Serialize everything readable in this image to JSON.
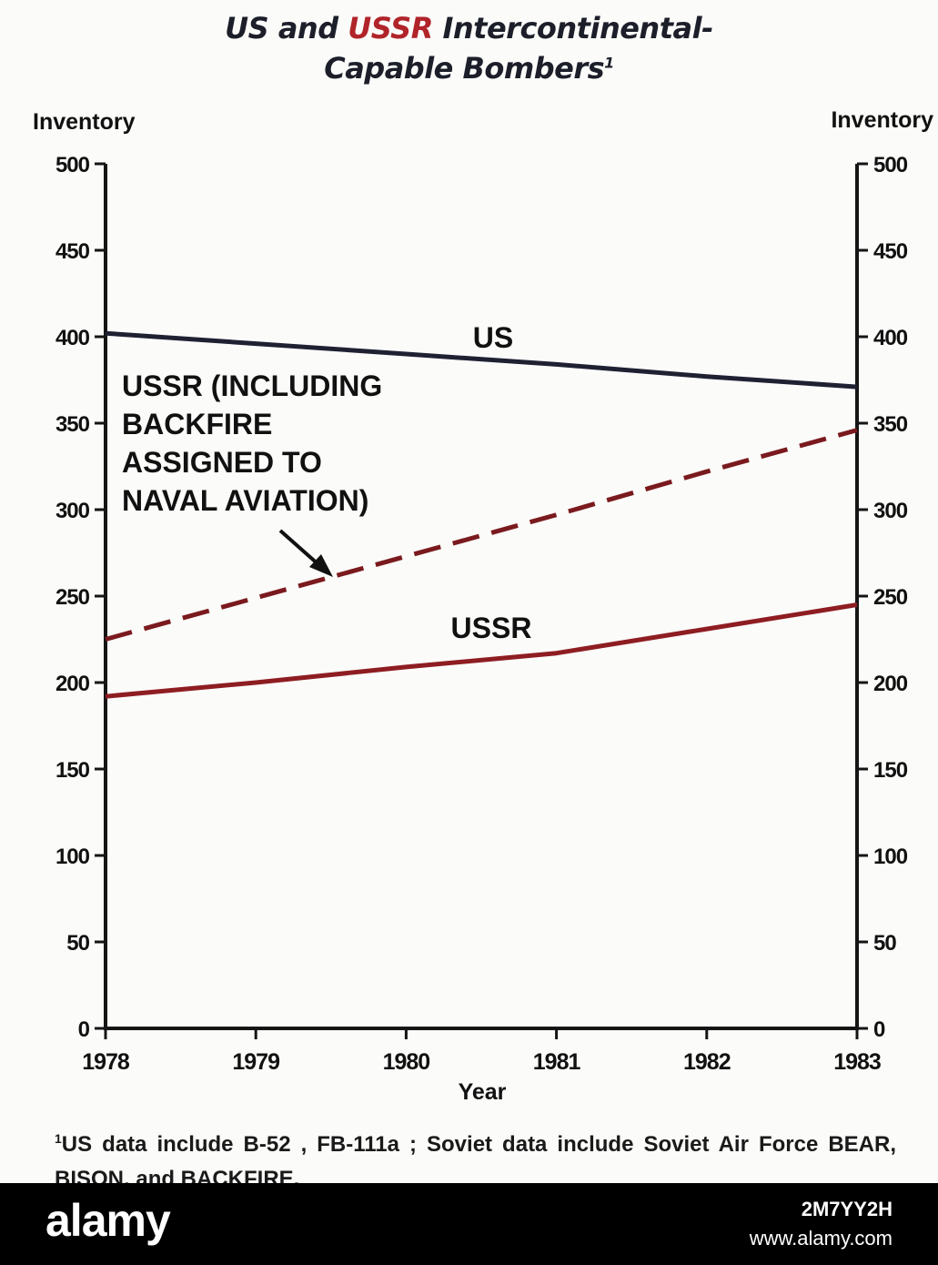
{
  "title": {
    "part1": "US",
    "part2": " and ",
    "part3": "USSR",
    "part4": " Intercontinental-",
    "line2": "Capable Bombers",
    "footnote_marker": "1"
  },
  "colors": {
    "us": "#1f2133",
    "ussr": "#8e1d22",
    "ussr_naval": "#7a1a1e",
    "title_red": "#b0242a",
    "axis": "#151515"
  },
  "chart_data": {
    "type": "line",
    "title": "US and USSR Intercontinental-Capable Bombers",
    "xlabel": "Year",
    "ylabel_left": "Inventory",
    "ylabel_right": "Inventory",
    "x": [
      1978,
      1979,
      1980,
      1981,
      1982,
      1983
    ],
    "ylim": [
      0,
      500
    ],
    "yticks": [
      0,
      50,
      100,
      150,
      200,
      250,
      300,
      350,
      400,
      450,
      500
    ],
    "grid": false,
    "series": [
      {
        "name": "US",
        "style": "solid",
        "values": [
          402,
          396,
          390,
          384,
          377,
          371
        ]
      },
      {
        "name": "USSR (INCLUDING BACKFIRE ASSIGNED TO NAVAL AVIATION)",
        "style": "dashed",
        "values": [
          225,
          249,
          273,
          297,
          322,
          346
        ]
      },
      {
        "name": "USSR",
        "style": "solid",
        "values": [
          192,
          200,
          209,
          217,
          231,
          245
        ]
      }
    ],
    "annotations": {
      "us_label": "US",
      "ussr_label": "USSR",
      "naval_label_lines": [
        "USSR (INCLUDING",
        "BACKFIRE",
        "ASSIGNED TO",
        "NAVAL AVIATION)"
      ]
    }
  },
  "footnote": {
    "marker": "1",
    "text": "US data include B-52 , FB-111a ; Soviet data include Soviet Air Force BEAR, BISON, and BACKFIRE."
  },
  "watermark": {
    "brand": "alamy",
    "code": "2M7YY2H",
    "site": "www.alamy.com"
  }
}
